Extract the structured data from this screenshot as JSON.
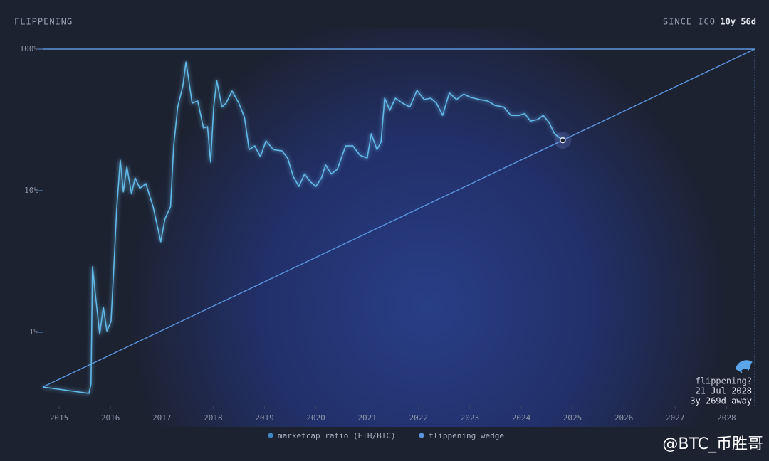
{
  "chart_data": {
    "type": "line",
    "title": "FLIPPENING",
    "since_label": "SINCE ICO",
    "since_value": "10y 56d",
    "log_scale": true,
    "xlim": [
      2014.68,
      2028.55
    ],
    "xticks": [
      2015,
      2016,
      2017,
      2018,
      2019,
      2020,
      2021,
      2022,
      2023,
      2024,
      2025,
      2026,
      2027,
      2028
    ],
    "ylim": [
      0.3,
      100
    ],
    "yticks": [
      {
        "value": 100,
        "label": "100%"
      },
      {
        "value": 10,
        "label": "10%"
      },
      {
        "value": 1,
        "label": "1%"
      }
    ],
    "series": [
      {
        "name": "marketcap ratio (ETH/BTC)",
        "color": "#62b8e6",
        "x": [
          2014.68,
          2015.58,
          2015.62,
          2015.65,
          2015.73,
          2015.79,
          2015.86,
          2015.93,
          2016.01,
          2016.07,
          2016.12,
          2016.19,
          2016.25,
          2016.32,
          2016.41,
          2016.48,
          2016.57,
          2016.69,
          2016.83,
          2016.98,
          2017.06,
          2017.17,
          2017.23,
          2017.31,
          2017.41,
          2017.47,
          2017.52,
          2017.59,
          2017.7,
          2017.81,
          2017.89,
          2017.95,
          2018.01,
          2018.07,
          2018.17,
          2018.25,
          2018.37,
          2018.5,
          2018.61,
          2018.7,
          2018.81,
          2018.92,
          2019.03,
          2019.17,
          2019.34,
          2019.45,
          2019.56,
          2019.67,
          2019.78,
          2019.89,
          2020.0,
          2020.11,
          2020.19,
          2020.3,
          2020.42,
          2020.58,
          2020.72,
          2020.86,
          2021.0,
          2021.08,
          2021.19,
          2021.27,
          2021.34,
          2021.44,
          2021.55,
          2021.69,
          2021.83,
          2021.97,
          2022.11,
          2022.24,
          2022.35,
          2022.47,
          2022.6,
          2022.74,
          2022.88,
          2023.02,
          2023.19,
          2023.35,
          2023.49,
          2023.66,
          2023.8,
          2023.96,
          2024.07,
          2024.18,
          2024.32,
          2024.43,
          2024.54,
          2024.65,
          2024.81
        ],
        "values": [
          0.41,
          0.37,
          0.43,
          2.9,
          1.53,
          0.97,
          1.5,
          1.02,
          1.19,
          3.07,
          7.3,
          16.4,
          9.8,
          14.7,
          9.5,
          12.3,
          10.4,
          11.2,
          7.7,
          4.35,
          6.3,
          7.7,
          20.7,
          39,
          55,
          81,
          62,
          41.5,
          43,
          27.7,
          28.3,
          15.9,
          39,
          60,
          39,
          41.5,
          50.5,
          41.5,
          33,
          19.5,
          20.7,
          17.4,
          22.5,
          19.5,
          19.1,
          17,
          12.6,
          10.7,
          13.1,
          11.6,
          10.7,
          12.3,
          15.2,
          13.1,
          14.2,
          20.7,
          20.7,
          17.8,
          17,
          25.2,
          19.5,
          22,
          45,
          37,
          45,
          41.5,
          39,
          51,
          44,
          45,
          41.5,
          34,
          49,
          44,
          48,
          45.5,
          44,
          43,
          40,
          39,
          34,
          34,
          35,
          31,
          31.8,
          34,
          30.4,
          25.2,
          22.7
        ]
      },
      {
        "name": "flippening wedge",
        "color": "#5b93dc",
        "x": [
          2014.68,
          2028.55,
          2014.68
        ],
        "values": [
          0.41,
          100,
          100
        ]
      }
    ],
    "annotation": {
      "title": "flippening?",
      "date": "21 Jul 2028",
      "away": "3y 269d away"
    },
    "watermark": "@BTC_币胜哥"
  }
}
